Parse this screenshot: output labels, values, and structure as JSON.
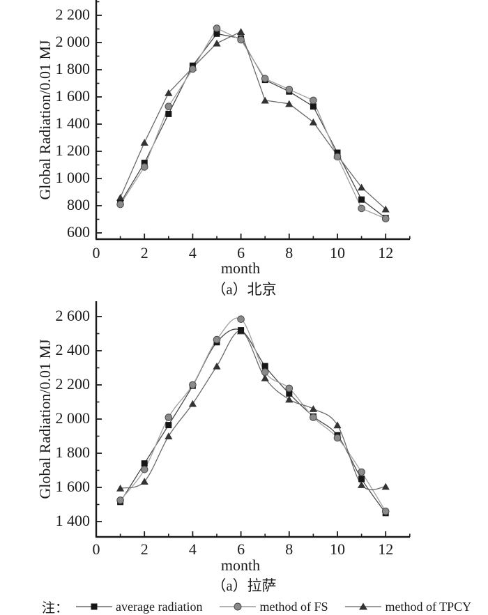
{
  "note_label": "注：",
  "colors": {
    "axis": "#1a1a1a",
    "average_line": "#4a4a4a",
    "average_marker": "#161616",
    "fs_line": "#a0a0a0",
    "fs_marker_fill": "#8a8a8a",
    "fs_marker_stroke": "#4a4a4a",
    "tpcy_line": "#6a6a6a",
    "tpcy_marker": "#333333"
  },
  "legend": {
    "items": [
      {
        "marker": "square",
        "label": "average radiation"
      },
      {
        "marker": "circle",
        "label": "method of FS"
      },
      {
        "marker": "triangle",
        "label": "method of TPCY"
      }
    ]
  },
  "chart_data": [
    {
      "type": "line",
      "title": "（a）北京",
      "xlabel": "month",
      "ylabel": "Global Radiation/0.01 MJ",
      "line_style": "straight",
      "x": [
        1,
        2,
        3,
        4,
        5,
        6,
        7,
        8,
        9,
        10,
        11,
        12
      ],
      "x_ticks": [
        0,
        2,
        4,
        6,
        8,
        10,
        12
      ],
      "y_ticks": [
        600,
        800,
        1000,
        1200,
        1400,
        1600,
        1800,
        2000,
        2200
      ],
      "xlim": [
        0,
        13
      ],
      "ylim": [
        600,
        2300
      ],
      "grid": false,
      "series": [
        {
          "name": "average radiation",
          "marker": "square",
          "values": [
            820,
            1115,
            1475,
            1830,
            2065,
            2030,
            1725,
            1640,
            1530,
            1190,
            845,
            710
          ]
        },
        {
          "name": "method of FS",
          "marker": "circle",
          "values": [
            810,
            1085,
            1530,
            1805,
            2105,
            2020,
            1735,
            1655,
            1575,
            1160,
            780,
            705
          ]
        },
        {
          "name": "method of TPCY",
          "marker": "triangle",
          "values": [
            860,
            1265,
            1630,
            1815,
            1995,
            2080,
            1575,
            1550,
            1415,
            1170,
            935,
            775
          ]
        }
      ]
    },
    {
      "type": "line",
      "title": "（a）拉萨",
      "xlabel": "month",
      "ylabel": "Global Radiation/0.01 MJ",
      "line_style": "smooth",
      "x": [
        1,
        2,
        3,
        4,
        5,
        6,
        7,
        8,
        9,
        10,
        11,
        12
      ],
      "x_ticks": [
        0,
        2,
        4,
        6,
        8,
        10,
        12
      ],
      "y_ticks": [
        1400,
        1600,
        1800,
        2000,
        2200,
        2400,
        2600
      ],
      "xlim": [
        0,
        13
      ],
      "ylim": [
        1310,
        2690
      ],
      "grid": false,
      "series": [
        {
          "name": "average radiation",
          "marker": "square",
          "values": [
            1515,
            1740,
            1965,
            2195,
            2450,
            2520,
            2310,
            2150,
            2015,
            1905,
            1650,
            1450
          ]
        },
        {
          "name": "method of FS",
          "marker": "circle",
          "values": [
            1525,
            1705,
            2010,
            2200,
            2465,
            2585,
            2275,
            2180,
            2010,
            1890,
            1690,
            1460
          ]
        },
        {
          "name": "method of TPCY",
          "marker": "triangle",
          "values": [
            1595,
            1635,
            1900,
            2090,
            2310,
            2515,
            2240,
            2115,
            2060,
            1965,
            1615,
            1605
          ]
        }
      ]
    }
  ]
}
